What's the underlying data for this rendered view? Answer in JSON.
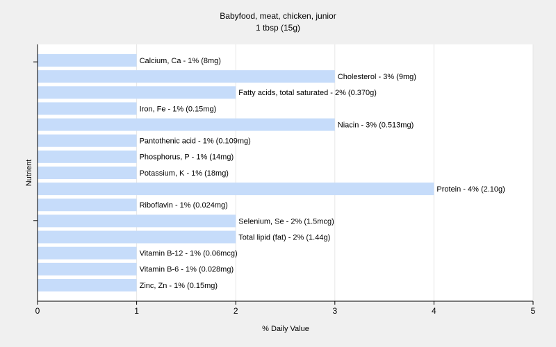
{
  "chart_data": {
    "type": "bar",
    "orientation": "horizontal",
    "title": "Babyfood, meat, chicken, junior",
    "subtitle": "1 tbsp (15g)",
    "xlabel": "% Daily Value",
    "ylabel": "Nutrient",
    "xlim": [
      0,
      5
    ],
    "x_ticks": [
      "0",
      "1",
      "2",
      "3",
      "4",
      "5"
    ],
    "grid": true,
    "legend": "none",
    "categories": [
      "Calcium, Ca",
      "Cholesterol",
      "Fatty acids, total saturated",
      "Iron, Fe",
      "Niacin",
      "Pantothenic acid",
      "Phosphorus, P",
      "Potassium, K",
      "Protein",
      "Riboflavin",
      "Selenium, Se",
      "Total lipid (fat)",
      "Vitamin B-12",
      "Vitamin B-6",
      "Zinc, Zn"
    ],
    "values": [
      1,
      3,
      2,
      1,
      3,
      1,
      1,
      1,
      4,
      1,
      2,
      2,
      1,
      1,
      1
    ],
    "data_labels": [
      "Calcium, Ca - 1% (8mg)",
      "Cholesterol - 3% (9mg)",
      "Fatty acids, total saturated - 2% (0.370g)",
      "Iron, Fe - 1% (0.15mg)",
      "Niacin - 3% (0.513mg)",
      "Pantothenic acid - 1% (0.109mg)",
      "Phosphorus, P - 1% (14mg)",
      "Potassium, K - 1% (18mg)",
      "Protein - 4% (2.10g)",
      "Riboflavin - 1% (0.024mg)",
      "Selenium, Se - 2% (1.5mcg)",
      "Total lipid (fat) - 2% (1.44g)",
      "Vitamin B-12 - 1% (0.06mcg)",
      "Vitamin B-6 - 1% (0.028mg)",
      "Zinc, Zn - 1% (0.15mg)"
    ],
    "colors": {
      "bar": "#c6dcfa",
      "plot_background": "#ffffff",
      "page_background": "#f0f0f0",
      "grid": "#e6e6e6",
      "axis": "#000000"
    }
  }
}
